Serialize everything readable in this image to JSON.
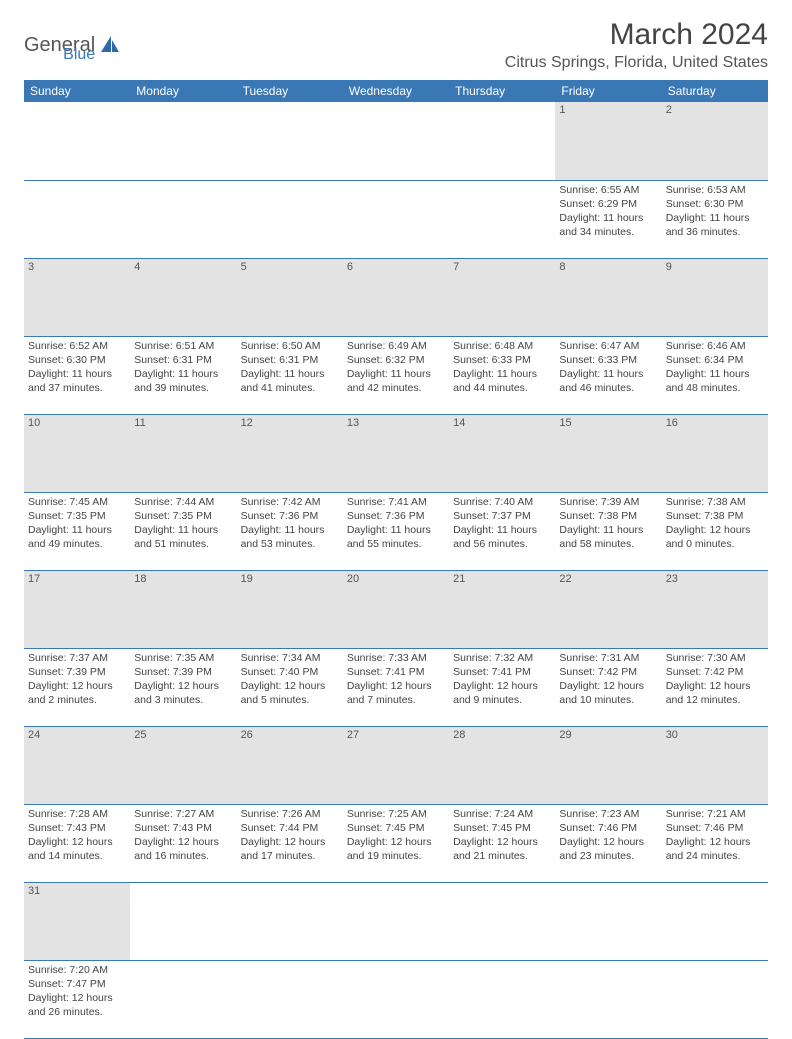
{
  "logo": {
    "general": "General",
    "blue": "Blue"
  },
  "title": "March 2024",
  "location": "Citrus Springs, Florida, United States",
  "colors": {
    "header_bg": "#3a78b5",
    "header_text": "#ffffff",
    "daynum_bg": "#e3e3e3",
    "border": "#3a78b5",
    "text": "#444444"
  },
  "weekdays": [
    "Sunday",
    "Monday",
    "Tuesday",
    "Wednesday",
    "Thursday",
    "Friday",
    "Saturday"
  ],
  "weeks": [
    {
      "nums": [
        "",
        "",
        "",
        "",
        "",
        "1",
        "2"
      ],
      "cells": [
        null,
        null,
        null,
        null,
        null,
        {
          "sunrise": "Sunrise: 6:55 AM",
          "sunset": "Sunset: 6:29 PM",
          "day1": "Daylight: 11 hours",
          "day2": "and 34 minutes."
        },
        {
          "sunrise": "Sunrise: 6:53 AM",
          "sunset": "Sunset: 6:30 PM",
          "day1": "Daylight: 11 hours",
          "day2": "and 36 minutes."
        }
      ]
    },
    {
      "nums": [
        "3",
        "4",
        "5",
        "6",
        "7",
        "8",
        "9"
      ],
      "cells": [
        {
          "sunrise": "Sunrise: 6:52 AM",
          "sunset": "Sunset: 6:30 PM",
          "day1": "Daylight: 11 hours",
          "day2": "and 37 minutes."
        },
        {
          "sunrise": "Sunrise: 6:51 AM",
          "sunset": "Sunset: 6:31 PM",
          "day1": "Daylight: 11 hours",
          "day2": "and 39 minutes."
        },
        {
          "sunrise": "Sunrise: 6:50 AM",
          "sunset": "Sunset: 6:31 PM",
          "day1": "Daylight: 11 hours",
          "day2": "and 41 minutes."
        },
        {
          "sunrise": "Sunrise: 6:49 AM",
          "sunset": "Sunset: 6:32 PM",
          "day1": "Daylight: 11 hours",
          "day2": "and 42 minutes."
        },
        {
          "sunrise": "Sunrise: 6:48 AM",
          "sunset": "Sunset: 6:33 PM",
          "day1": "Daylight: 11 hours",
          "day2": "and 44 minutes."
        },
        {
          "sunrise": "Sunrise: 6:47 AM",
          "sunset": "Sunset: 6:33 PM",
          "day1": "Daylight: 11 hours",
          "day2": "and 46 minutes."
        },
        {
          "sunrise": "Sunrise: 6:46 AM",
          "sunset": "Sunset: 6:34 PM",
          "day1": "Daylight: 11 hours",
          "day2": "and 48 minutes."
        }
      ]
    },
    {
      "nums": [
        "10",
        "11",
        "12",
        "13",
        "14",
        "15",
        "16"
      ],
      "cells": [
        {
          "sunrise": "Sunrise: 7:45 AM",
          "sunset": "Sunset: 7:35 PM",
          "day1": "Daylight: 11 hours",
          "day2": "and 49 minutes."
        },
        {
          "sunrise": "Sunrise: 7:44 AM",
          "sunset": "Sunset: 7:35 PM",
          "day1": "Daylight: 11 hours",
          "day2": "and 51 minutes."
        },
        {
          "sunrise": "Sunrise: 7:42 AM",
          "sunset": "Sunset: 7:36 PM",
          "day1": "Daylight: 11 hours",
          "day2": "and 53 minutes."
        },
        {
          "sunrise": "Sunrise: 7:41 AM",
          "sunset": "Sunset: 7:36 PM",
          "day1": "Daylight: 11 hours",
          "day2": "and 55 minutes."
        },
        {
          "sunrise": "Sunrise: 7:40 AM",
          "sunset": "Sunset: 7:37 PM",
          "day1": "Daylight: 11 hours",
          "day2": "and 56 minutes."
        },
        {
          "sunrise": "Sunrise: 7:39 AM",
          "sunset": "Sunset: 7:38 PM",
          "day1": "Daylight: 11 hours",
          "day2": "and 58 minutes."
        },
        {
          "sunrise": "Sunrise: 7:38 AM",
          "sunset": "Sunset: 7:38 PM",
          "day1": "Daylight: 12 hours",
          "day2": "and 0 minutes."
        }
      ]
    },
    {
      "nums": [
        "17",
        "18",
        "19",
        "20",
        "21",
        "22",
        "23"
      ],
      "cells": [
        {
          "sunrise": "Sunrise: 7:37 AM",
          "sunset": "Sunset: 7:39 PM",
          "day1": "Daylight: 12 hours",
          "day2": "and 2 minutes."
        },
        {
          "sunrise": "Sunrise: 7:35 AM",
          "sunset": "Sunset: 7:39 PM",
          "day1": "Daylight: 12 hours",
          "day2": "and 3 minutes."
        },
        {
          "sunrise": "Sunrise: 7:34 AM",
          "sunset": "Sunset: 7:40 PM",
          "day1": "Daylight: 12 hours",
          "day2": "and 5 minutes."
        },
        {
          "sunrise": "Sunrise: 7:33 AM",
          "sunset": "Sunset: 7:41 PM",
          "day1": "Daylight: 12 hours",
          "day2": "and 7 minutes."
        },
        {
          "sunrise": "Sunrise: 7:32 AM",
          "sunset": "Sunset: 7:41 PM",
          "day1": "Daylight: 12 hours",
          "day2": "and 9 minutes."
        },
        {
          "sunrise": "Sunrise: 7:31 AM",
          "sunset": "Sunset: 7:42 PM",
          "day1": "Daylight: 12 hours",
          "day2": "and 10 minutes."
        },
        {
          "sunrise": "Sunrise: 7:30 AM",
          "sunset": "Sunset: 7:42 PM",
          "day1": "Daylight: 12 hours",
          "day2": "and 12 minutes."
        }
      ]
    },
    {
      "nums": [
        "24",
        "25",
        "26",
        "27",
        "28",
        "29",
        "30"
      ],
      "cells": [
        {
          "sunrise": "Sunrise: 7:28 AM",
          "sunset": "Sunset: 7:43 PM",
          "day1": "Daylight: 12 hours",
          "day2": "and 14 minutes."
        },
        {
          "sunrise": "Sunrise: 7:27 AM",
          "sunset": "Sunset: 7:43 PM",
          "day1": "Daylight: 12 hours",
          "day2": "and 16 minutes."
        },
        {
          "sunrise": "Sunrise: 7:26 AM",
          "sunset": "Sunset: 7:44 PM",
          "day1": "Daylight: 12 hours",
          "day2": "and 17 minutes."
        },
        {
          "sunrise": "Sunrise: 7:25 AM",
          "sunset": "Sunset: 7:45 PM",
          "day1": "Daylight: 12 hours",
          "day2": "and 19 minutes."
        },
        {
          "sunrise": "Sunrise: 7:24 AM",
          "sunset": "Sunset: 7:45 PM",
          "day1": "Daylight: 12 hours",
          "day2": "and 21 minutes."
        },
        {
          "sunrise": "Sunrise: 7:23 AM",
          "sunset": "Sunset: 7:46 PM",
          "day1": "Daylight: 12 hours",
          "day2": "and 23 minutes."
        },
        {
          "sunrise": "Sunrise: 7:21 AM",
          "sunset": "Sunset: 7:46 PM",
          "day1": "Daylight: 12 hours",
          "day2": "and 24 minutes."
        }
      ]
    },
    {
      "nums": [
        "31",
        "",
        "",
        "",
        "",
        "",
        ""
      ],
      "cells": [
        {
          "sunrise": "Sunrise: 7:20 AM",
          "sunset": "Sunset: 7:47 PM",
          "day1": "Daylight: 12 hours",
          "day2": "and 26 minutes."
        },
        null,
        null,
        null,
        null,
        null,
        null
      ]
    }
  ]
}
